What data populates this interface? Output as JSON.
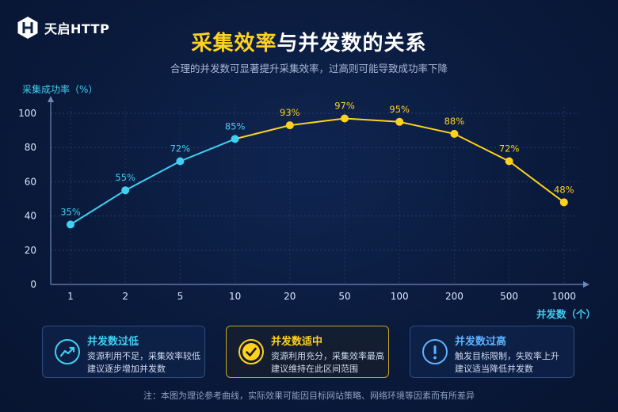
{
  "brand": {
    "name": "天启HTTP",
    "logo_icon": "hexagon-h-logo-icon"
  },
  "header": {
    "title_highlight": "采集效率",
    "title_rest": "与并发数的关系",
    "subtitle": "合理的并发数可显著提升采集效率，过高则可能导致成功率下降"
  },
  "chart_data": {
    "type": "line",
    "title": "采集效率与并发数的关系",
    "subtitle": "合理的并发数可显著提升采集效率，过高则可能导致成功率下降",
    "xlabel": "并发数（个）",
    "ylabel": "采集成功率（%）",
    "x_scale": "log",
    "categories": [
      "1",
      "2",
      "5",
      "10",
      "20",
      "50",
      "100",
      "200",
      "500",
      "1000"
    ],
    "x": [
      1,
      2,
      5,
      10,
      20,
      50,
      100,
      200,
      500,
      1000
    ],
    "values": [
      35,
      55,
      72,
      85,
      93,
      97,
      95,
      88,
      72,
      48
    ],
    "data_labels": [
      "35%",
      "55%",
      "72%",
      "85%",
      "93%",
      "97%",
      "95%",
      "88%",
      "72%",
      "48%"
    ],
    "ylim": [
      0,
      100
    ],
    "yticks": [
      0,
      20,
      40,
      60,
      80,
      100
    ],
    "grid": true,
    "colors": {
      "rising": "#3fd0f2",
      "falling": "#ffd21f",
      "transition_after_x": 10
    }
  },
  "cards": [
    {
      "title": "并发数过低",
      "line1": "资源利用不足，采集效率较低",
      "line2": "建议逐步增加并发数",
      "icon": "trending-up-icon",
      "color": "#3fd0f2"
    },
    {
      "title": "并发数适中",
      "line1": "资源利用充分，采集效率最高",
      "line2": "建议维持在此区间范围",
      "icon": "check-circle-icon",
      "color": "#ffd21f"
    },
    {
      "title": "并发数过高",
      "line1": "触发目标限制，失败率上升",
      "line2": "建议适当降低并发数",
      "icon": "exclamation-circle-icon",
      "color": "#5db3ff"
    }
  ],
  "footnote": "注：本图为理论参考曲线，实际效果可能因目标网站策略、网络环境等因素而有所差异"
}
